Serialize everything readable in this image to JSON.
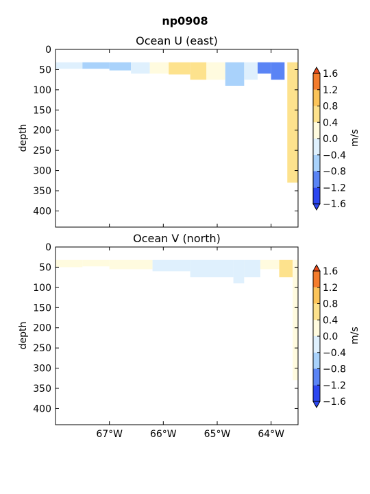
{
  "suptitle": "np0908",
  "palette": {
    "-1.6": "#2b46f0",
    "-1.2": "#5a84f5",
    "-0.8": "#a9d2fb",
    "-0.4": "#dff0fd",
    "0.0": "#fffbdf",
    "0.4": "#fde28d",
    "0.8": "#fbc45a",
    "1.2": "#f47c2c",
    "1.6": "#e84a1a"
  },
  "colorbar": {
    "ticks": [
      "1.6",
      "1.2",
      "0.8",
      "0.4",
      "0.0",
      "−0.4",
      "−0.8",
      "−1.2",
      "−1.6"
    ],
    "label": "m/s",
    "levels": [
      -1.6,
      -1.2,
      -0.8,
      -0.4,
      0.0,
      0.4,
      0.8,
      1.2,
      1.6
    ]
  },
  "chart_data": [
    {
      "type": "heatmap",
      "title": "Ocean U (east)",
      "ylabel": "depth",
      "xlabel": "",
      "xlim": [
        -68.0,
        -63.5
      ],
      "ylim": [
        440,
        0
      ],
      "yticks": [
        "0",
        "50",
        "100",
        "150",
        "200",
        "250",
        "300",
        "350",
        "400"
      ],
      "xticks": [
        "67°W",
        "66°W",
        "65°W",
        "64°W"
      ],
      "xtick_values": [
        -67,
        -66,
        -65,
        -64
      ],
      "cells": [
        {
          "x0": -68.0,
          "x1": -67.5,
          "d0": 32,
          "d1": 48,
          "level": -0.4
        },
        {
          "x0": -67.5,
          "x1": -67.0,
          "d0": 32,
          "d1": 48,
          "level": -0.8
        },
        {
          "x0": -67.0,
          "x1": -66.6,
          "d0": 32,
          "d1": 52,
          "level": -0.8
        },
        {
          "x0": -66.6,
          "x1": -66.25,
          "d0": 32,
          "d1": 60,
          "level": -0.4
        },
        {
          "x0": -66.25,
          "x1": -65.9,
          "d0": 32,
          "d1": 60,
          "level": 0.0
        },
        {
          "x0": -65.9,
          "x1": -65.5,
          "d0": 32,
          "d1": 62,
          "level": 0.4
        },
        {
          "x0": -65.5,
          "x1": -65.2,
          "d0": 32,
          "d1": 75,
          "level": 0.4
        },
        {
          "x0": -65.2,
          "x1": -64.85,
          "d0": 32,
          "d1": 75,
          "level": 0.0
        },
        {
          "x0": -64.85,
          "x1": -64.5,
          "d0": 32,
          "d1": 90,
          "level": -0.8
        },
        {
          "x0": -64.5,
          "x1": -64.25,
          "d0": 32,
          "d1": 75,
          "level": -0.4
        },
        {
          "x0": -64.25,
          "x1": -64.0,
          "d0": 32,
          "d1": 60,
          "level": -1.2
        },
        {
          "x0": -64.0,
          "x1": -63.75,
          "d0": 32,
          "d1": 75,
          "level": -1.2
        },
        {
          "x0": -63.7,
          "x1": -63.5,
          "d0": 32,
          "d1": 330,
          "level": 0.4
        }
      ]
    },
    {
      "type": "heatmap",
      "title": "Ocean V (north)",
      "ylabel": "depth",
      "xlabel": "",
      "xlim": [
        -68.0,
        -63.5
      ],
      "ylim": [
        440,
        0
      ],
      "yticks": [
        "0",
        "50",
        "100",
        "150",
        "200",
        "250",
        "300",
        "350",
        "400"
      ],
      "xticks": [
        "67°W",
        "66°W",
        "65°W",
        "64°W"
      ],
      "xtick_values": [
        -67,
        -66,
        -65,
        -64
      ],
      "cells": [
        {
          "x0": -68.0,
          "x1": -67.5,
          "d0": 32,
          "d1": 50,
          "level": 0.0
        },
        {
          "x0": -67.5,
          "x1": -67.0,
          "d0": 32,
          "d1": 48,
          "level": 0.0
        },
        {
          "x0": -67.0,
          "x1": -66.2,
          "d0": 32,
          "d1": 55,
          "level": 0.0
        },
        {
          "x0": -66.2,
          "x1": -65.5,
          "d0": 32,
          "d1": 60,
          "level": -0.4
        },
        {
          "x0": -65.5,
          "x1": -64.7,
          "d0": 32,
          "d1": 75,
          "level": -0.4
        },
        {
          "x0": -64.7,
          "x1": -64.5,
          "d0": 32,
          "d1": 90,
          "level": -0.4
        },
        {
          "x0": -64.5,
          "x1": -64.2,
          "d0": 32,
          "d1": 75,
          "level": -0.4
        },
        {
          "x0": -64.2,
          "x1": -63.85,
          "d0": 32,
          "d1": 55,
          "level": 0.0
        },
        {
          "x0": -63.85,
          "x1": -63.6,
          "d0": 32,
          "d1": 75,
          "level": 0.4
        },
        {
          "x0": -63.6,
          "x1": -63.5,
          "d0": 32,
          "d1": 330,
          "level": 0.0
        }
      ]
    }
  ]
}
